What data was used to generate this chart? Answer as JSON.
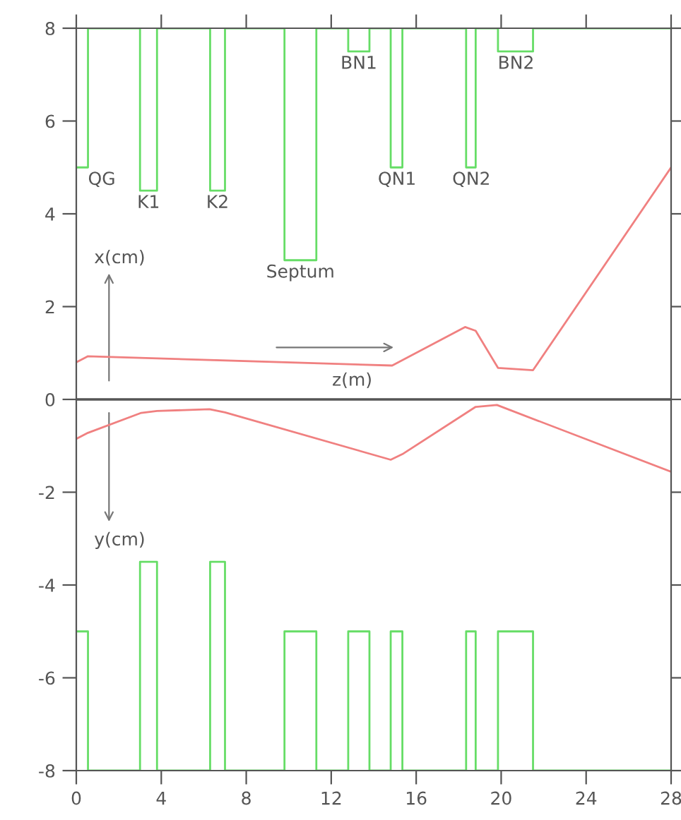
{
  "chart_data": {
    "type": "line",
    "xlim": [
      0,
      28
    ],
    "ylim": [
      -8,
      8
    ],
    "xticks": [
      0,
      4,
      8,
      12,
      16,
      20,
      24,
      28
    ],
    "yticks": [
      -8,
      -6,
      -4,
      -2,
      0,
      2,
      4,
      6,
      8
    ],
    "grid": false,
    "annotations": [
      {
        "text": "QG",
        "x": 0.55,
        "y": 5
      },
      {
        "text": "K1",
        "x": 3.4,
        "y": 4.5
      },
      {
        "text": "K2",
        "x": 6.65,
        "y": 4.5
      },
      {
        "text": "Septum",
        "x": 10.55,
        "y": 3
      },
      {
        "text": "BN1",
        "x": 13.3,
        "y": 7.5
      },
      {
        "text": "QN1",
        "x": 15.1,
        "y": 5
      },
      {
        "text": "QN2",
        "x": 18.6,
        "y": 5
      },
      {
        "text": "BN2",
        "x": 20.7,
        "y": 7.5
      },
      "x(cm)",
      "y(cm)",
      "z(m)"
    ],
    "ref_lines": [
      {
        "axis": "y",
        "value": 0,
        "color": "#555555"
      }
    ],
    "series": [
      {
        "color": "#f08080",
        "x": [
          0,
          0.55,
          14.87,
          18.3,
          18.8,
          19.85,
          21.5,
          28
        ],
        "values": [
          0.8,
          0.93,
          0.73,
          1.56,
          1.48,
          0.68,
          0.63,
          5.0
        ]
      },
      {
        "color": "#f08080",
        "x": [
          0,
          0.55,
          3.06,
          3.8,
          6.27,
          7.0,
          14.8,
          15.35,
          18.8,
          19.8,
          28
        ],
        "values": [
          -0.85,
          -0.72,
          -0.29,
          -0.25,
          -0.21,
          -0.28,
          -1.3,
          -1.18,
          -0.16,
          -0.12,
          -1.56
        ]
      },
      {
        "type": "step",
        "color": "#66dd66",
        "x": [
          0,
          0.55,
          3.0,
          3.8,
          6.3,
          7.0,
          9.8,
          11.3,
          12.8,
          13.8,
          14.8,
          15.35,
          18.35,
          18.8,
          19.85,
          21.5,
          28
        ],
        "values": [
          5,
          8,
          4.5,
          8,
          4.5,
          8,
          3,
          8,
          7.5,
          8,
          5,
          8,
          5,
          8,
          7.5,
          8,
          8
        ]
      },
      {
        "type": "step",
        "color": "#66dd66",
        "x": [
          0,
          0.55,
          3.0,
          3.8,
          6.3,
          7.0,
          9.8,
          11.3,
          12.8,
          13.8,
          14.8,
          15.35,
          18.35,
          18.8,
          19.85,
          21.5,
          28
        ],
        "values": [
          -5,
          -8,
          -3.5,
          -8,
          -3.5,
          -8,
          -5,
          -8,
          -5,
          -8,
          -5,
          -8,
          -5,
          -8,
          -5,
          -8,
          -8
        ]
      }
    ]
  }
}
